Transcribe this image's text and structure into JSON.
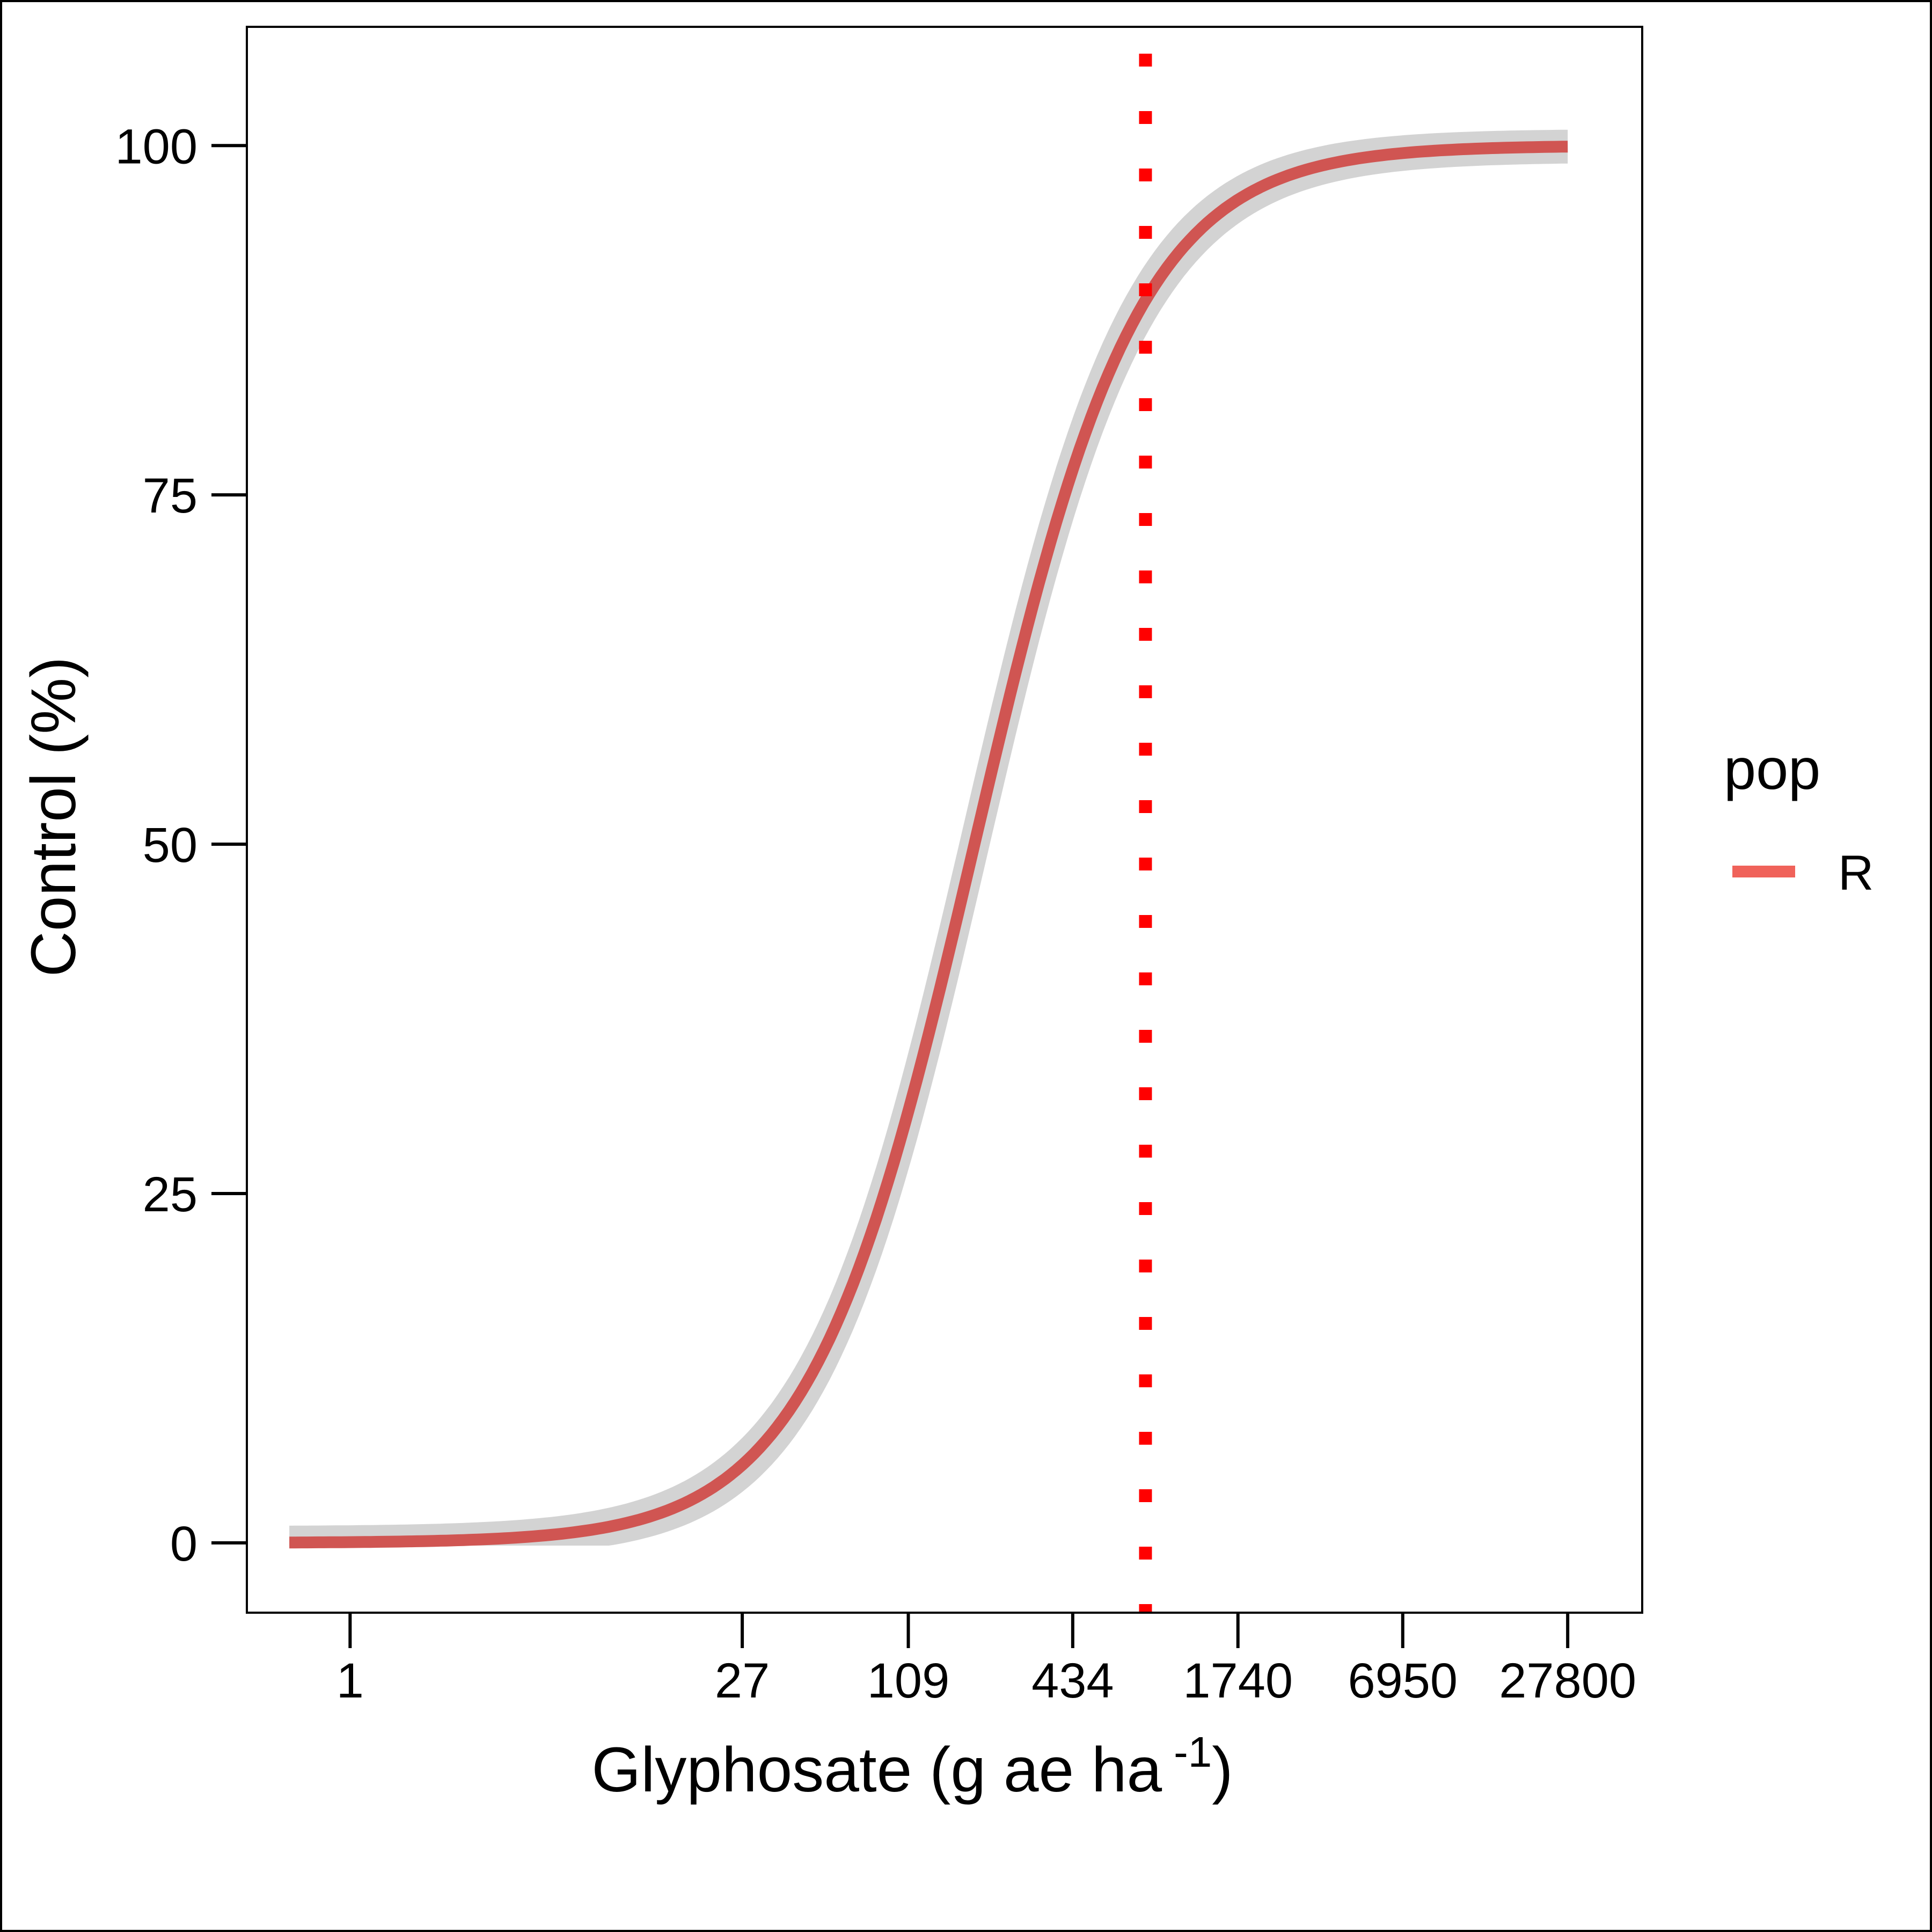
{
  "chart_data": {
    "type": "line",
    "xlabel": "Glyphosate (g ae ha",
    "xlabel_superscript": "-1",
    "xlabel_suffix": ")",
    "ylabel": "Control (%)",
    "x_scale": "log",
    "xlim": [
      0.42,
      52000
    ],
    "ylim": [
      -5,
      108.5
    ],
    "x_ticks": [
      1,
      27,
      109,
      434,
      1740,
      6950,
      27800
    ],
    "x_tick_labels": [
      "1",
      "27",
      "109",
      "434",
      "1740",
      "6950",
      "27800"
    ],
    "y_ticks": [
      0,
      25,
      50,
      75,
      100
    ],
    "y_tick_labels": [
      "0",
      "25",
      "50",
      "75",
      "100"
    ],
    "grid": false,
    "legend": {
      "title": "pop",
      "entries": [
        "R"
      ],
      "position": "right"
    },
    "series": [
      {
        "name": "R",
        "color": "#f0625a",
        "line_color": "#d05552",
        "model": "log-logistic",
        "lower": 0,
        "upper": 100,
        "ed50": 190,
        "slope": 1.45,
        "x_range": [
          0.6,
          27800
        ],
        "band_color": "#d3d3d3"
      }
    ],
    "reference_lines": [
      {
        "orientation": "vertical",
        "x": 800,
        "color": "#ff0000",
        "style": "dotted"
      }
    ],
    "colors": {
      "background": "#ffffff",
      "panel_border": "#000000"
    }
  }
}
